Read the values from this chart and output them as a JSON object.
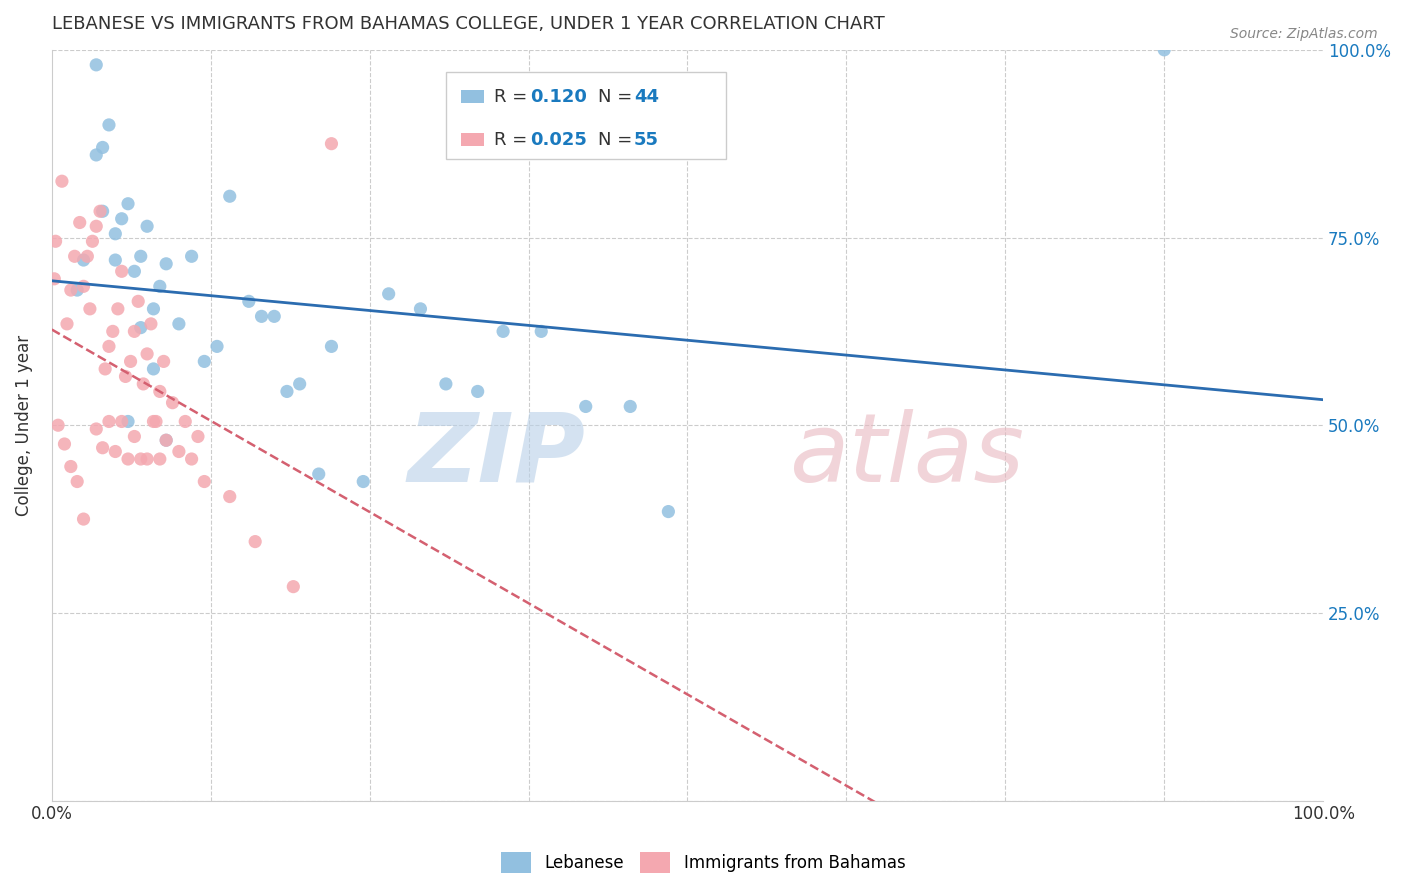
{
  "title": "LEBANESE VS IMMIGRANTS FROM BAHAMAS COLLEGE, UNDER 1 YEAR CORRELATION CHART",
  "source": "Source: ZipAtlas.com",
  "ylabel": "College, Under 1 year",
  "ytick_labels": [
    "",
    "25.0%",
    "50.0%",
    "75.0%",
    "100.0%"
  ],
  "ytick_values": [
    0,
    0.25,
    0.5,
    0.75,
    1.0
  ],
  "legend_blue_R": "R = ",
  "legend_blue_R_val": "0.120",
  "legend_blue_N": "N = ",
  "legend_blue_N_val": "44",
  "legend_pink_R": "R = ",
  "legend_pink_R_val": "0.025",
  "legend_pink_N": "N = ",
  "legend_pink_N_val": "55",
  "blue_color": "#92c0e0",
  "pink_color": "#f4a8b0",
  "blue_line_color": "#2b6cb0",
  "pink_line_color": "#d46070",
  "value_color": "#1a7abf",
  "blue_scatter_x": [
    0.02,
    0.025,
    0.035,
    0.04,
    0.045,
    0.05,
    0.055,
    0.06,
    0.065,
    0.07,
    0.075,
    0.08,
    0.085,
    0.09,
    0.1,
    0.11,
    0.12,
    0.13,
    0.14,
    0.155,
    0.165,
    0.175,
    0.185,
    0.195,
    0.21,
    0.22,
    0.245,
    0.265,
    0.29,
    0.31,
    0.335,
    0.355,
    0.385,
    0.42,
    0.455,
    0.485,
    0.875,
    0.06,
    0.07,
    0.08,
    0.09,
    0.035,
    0.04,
    0.05
  ],
  "blue_scatter_y": [
    0.68,
    0.72,
    0.98,
    0.87,
    0.9,
    0.755,
    0.775,
    0.795,
    0.705,
    0.725,
    0.765,
    0.655,
    0.685,
    0.715,
    0.635,
    0.725,
    0.585,
    0.605,
    0.805,
    0.665,
    0.645,
    0.645,
    0.545,
    0.555,
    0.435,
    0.605,
    0.425,
    0.675,
    0.655,
    0.555,
    0.545,
    0.625,
    0.625,
    0.525,
    0.525,
    0.385,
    1.0,
    0.505,
    0.63,
    0.575,
    0.48,
    0.86,
    0.785,
    0.72
  ],
  "pink_scatter_x": [
    0.002,
    0.003,
    0.008,
    0.012,
    0.015,
    0.018,
    0.022,
    0.025,
    0.028,
    0.032,
    0.035,
    0.038,
    0.042,
    0.045,
    0.048,
    0.052,
    0.055,
    0.058,
    0.062,
    0.065,
    0.068,
    0.072,
    0.075,
    0.078,
    0.082,
    0.085,
    0.088,
    0.005,
    0.01,
    0.015,
    0.02,
    0.025,
    0.03,
    0.035,
    0.04,
    0.045,
    0.05,
    0.055,
    0.06,
    0.065,
    0.07,
    0.075,
    0.08,
    0.085,
    0.09,
    0.095,
    0.1,
    0.105,
    0.11,
    0.115,
    0.12,
    0.14,
    0.16,
    0.19,
    0.22
  ],
  "pink_scatter_y": [
    0.695,
    0.745,
    0.825,
    0.635,
    0.68,
    0.725,
    0.77,
    0.685,
    0.725,
    0.745,
    0.765,
    0.785,
    0.575,
    0.605,
    0.625,
    0.655,
    0.705,
    0.565,
    0.585,
    0.625,
    0.665,
    0.555,
    0.595,
    0.635,
    0.505,
    0.545,
    0.585,
    0.5,
    0.475,
    0.445,
    0.425,
    0.375,
    0.655,
    0.495,
    0.47,
    0.505,
    0.465,
    0.505,
    0.455,
    0.485,
    0.455,
    0.455,
    0.505,
    0.455,
    0.48,
    0.53,
    0.465,
    0.505,
    0.455,
    0.485,
    0.425,
    0.405,
    0.345,
    0.285,
    0.875
  ]
}
